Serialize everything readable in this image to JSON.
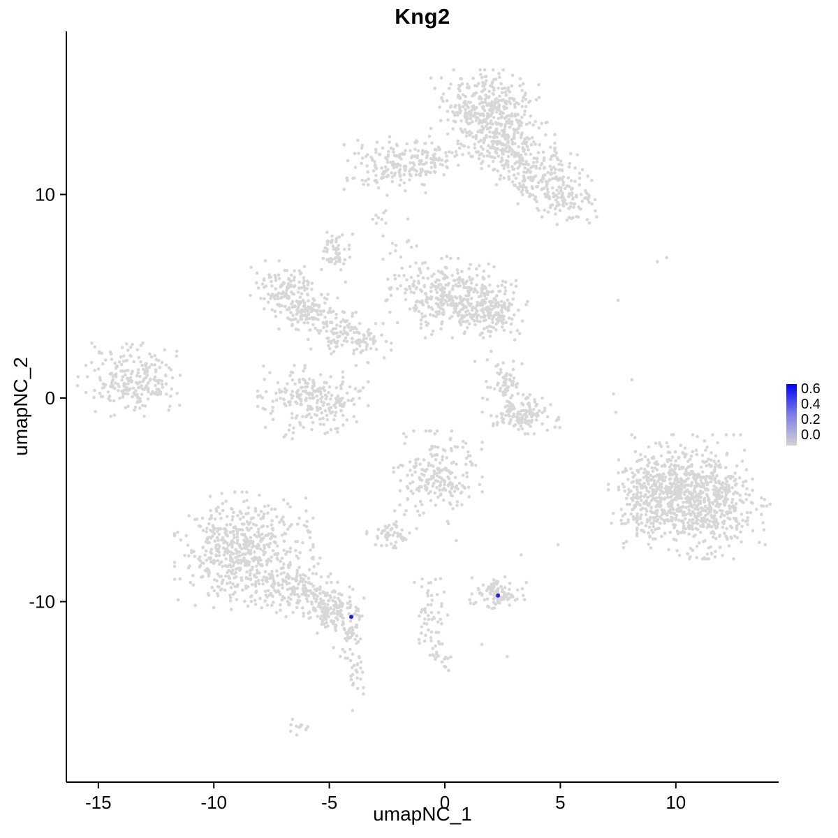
{
  "page": {
    "title": "Kng2"
  },
  "chart_data": {
    "type": "scatter",
    "title": "Kng2",
    "xlabel": "umapNC_1",
    "ylabel": "umapNC_2",
    "xlim": [
      -16.4,
      14.4
    ],
    "ylim": [
      -18.9,
      18.0
    ],
    "x_ticks": [
      -15,
      -10,
      -5,
      0,
      5,
      10
    ],
    "y_ticks": [
      -10,
      0,
      10
    ],
    "grid": false,
    "legend": {
      "position": "right",
      "min": 0.0,
      "max": 0.65,
      "ticks": [
        "0.6",
        "0.4",
        "0.2",
        "0.0"
      ]
    },
    "colors": {
      "low": "#d3d3d3",
      "high": "#0000ff",
      "point_gray": "#d7d7d7",
      "highlight": "#1d1de0",
      "axis": "#000000"
    },
    "clusters": [
      {
        "cx": 1.8,
        "cy": 14.2,
        "sx": 1.0,
        "sy": 0.8,
        "n": 350
      },
      {
        "cx": 2.6,
        "cy": 12.4,
        "sx": 0.9,
        "sy": 0.8,
        "n": 220
      },
      {
        "cx": 4.2,
        "cy": 10.9,
        "sx": 0.9,
        "sy": 0.7,
        "n": 160
      },
      {
        "cx": 5.3,
        "cy": 9.6,
        "sx": 0.7,
        "sy": 0.5,
        "n": 90
      },
      {
        "cx": -2.2,
        "cy": 11.4,
        "sx": 0.9,
        "sy": 0.6,
        "n": 160
      },
      {
        "cx": -0.6,
        "cy": 11.9,
        "sx": 0.5,
        "sy": 0.4,
        "n": 60
      },
      {
        "cx": -2.9,
        "cy": 8.9,
        "sx": 0.2,
        "sy": 0.2,
        "n": 8
      },
      {
        "cx": -2.0,
        "cy": 7.3,
        "sx": 0.5,
        "sy": 0.6,
        "n": 14
      },
      {
        "cx": -6.9,
        "cy": 5.3,
        "sx": 0.65,
        "sy": 0.6,
        "n": 130
      },
      {
        "cx": -5.8,
        "cy": 4.2,
        "sx": 0.6,
        "sy": 0.55,
        "n": 110
      },
      {
        "cx": -4.6,
        "cy": 3.2,
        "sx": 0.5,
        "sy": 0.5,
        "n": 80
      },
      {
        "cx": -3.4,
        "cy": 2.7,
        "sx": 0.45,
        "sy": 0.4,
        "n": 45
      },
      {
        "cx": -5.7,
        "cy": -0.2,
        "sx": 1.0,
        "sy": 0.75,
        "n": 240
      },
      {
        "cx": -4.7,
        "cy": 7.3,
        "sx": 0.35,
        "sy": 0.35,
        "n": 50
      },
      {
        "cx": 0.2,
        "cy": 5.0,
        "sx": 1.2,
        "sy": 0.85,
        "n": 340
      },
      {
        "cx": 1.9,
        "cy": 4.3,
        "sx": 0.7,
        "sy": 0.6,
        "n": 150
      },
      {
        "cx": -13.5,
        "cy": 0.9,
        "sx": 1.0,
        "sy": 0.75,
        "n": 230
      },
      {
        "cx": 2.6,
        "cy": 0.8,
        "sx": 0.4,
        "sy": 0.55,
        "n": 60
      },
      {
        "cx": 3.3,
        "cy": -0.8,
        "sx": 0.7,
        "sy": 0.4,
        "n": 130
      },
      {
        "cx": 10.2,
        "cy": -4.2,
        "sx": 1.3,
        "sy": 1.0,
        "n": 450
      },
      {
        "cx": 11.2,
        "cy": -5.5,
        "sx": 1.2,
        "sy": 1.0,
        "n": 420
      },
      {
        "cx": 8.7,
        "cy": -5.2,
        "sx": 0.7,
        "sy": 0.9,
        "n": 140
      },
      {
        "cx": -0.3,
        "cy": -3.9,
        "sx": 0.8,
        "sy": 0.95,
        "n": 210
      },
      {
        "cx": -2.3,
        "cy": -6.8,
        "sx": 0.45,
        "sy": 0.3,
        "n": 55
      },
      {
        "cx": -8.7,
        "cy": -7.5,
        "sx": 1.25,
        "sy": 1.2,
        "n": 560
      },
      {
        "cx": -6.3,
        "cy": -9.3,
        "sx": 0.8,
        "sy": 0.6,
        "n": 150
      },
      {
        "cx": -4.8,
        "cy": -10.4,
        "sx": 0.55,
        "sy": 0.5,
        "n": 140
      },
      {
        "cx": -4.1,
        "cy": -11.8,
        "sx": 0.3,
        "sy": 0.6,
        "n": 40
      },
      {
        "cx": -3.8,
        "cy": -13.6,
        "sx": 0.25,
        "sy": 0.8,
        "n": 22
      },
      {
        "cx": 2.4,
        "cy": -9.6,
        "sx": 0.55,
        "sy": 0.35,
        "n": 95
      },
      {
        "cx": -0.6,
        "cy": -10.9,
        "sx": 0.3,
        "sy": 0.9,
        "n": 55
      },
      {
        "cx": -0.1,
        "cy": -12.6,
        "sx": 0.25,
        "sy": 0.4,
        "n": 18
      },
      {
        "cx": -6.2,
        "cy": -16.2,
        "sx": 0.35,
        "sy": 0.2,
        "n": 12
      }
    ],
    "singles": [
      [
        7.3,
        0.2
      ],
      [
        7.4,
        -0.7
      ],
      [
        8.1,
        0.9
      ],
      [
        9.2,
        6.7
      ],
      [
        9.6,
        6.9
      ],
      [
        7.5,
        4.8
      ],
      [
        4.9,
        -7.2
      ],
      [
        3.3,
        -7.7
      ],
      [
        -1.6,
        8.8
      ],
      [
        -11.6,
        2.3
      ],
      [
        -11.9,
        -0.4
      ],
      [
        0.5,
        -7.0
      ],
      [
        2.7,
        -12.7
      ],
      [
        1.6,
        -12.1
      ],
      [
        -4.5,
        6.3
      ],
      [
        -4.3,
        5.7
      ],
      [
        2.0,
        2.3
      ],
      [
        1.3,
        1.8
      ]
    ],
    "highlighted_points": [
      {
        "x": -4.05,
        "y": -10.75,
        "value": 0.6
      },
      {
        "x": 2.3,
        "y": -9.7,
        "value": 0.6
      }
    ]
  }
}
